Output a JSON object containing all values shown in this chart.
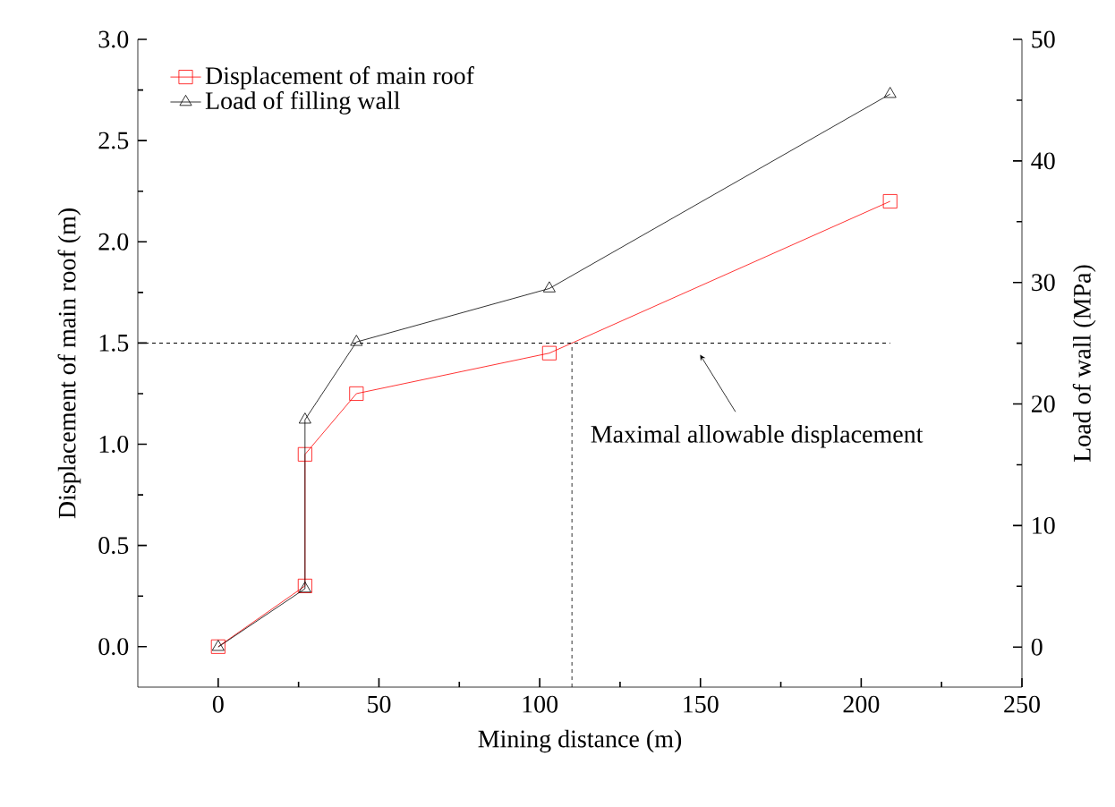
{
  "chart_data": {
    "type": "line",
    "xlabel": "Mining distance (m)",
    "ylabel": "Displacement of main roof (m)",
    "y2label": "Load of wall (MPa)",
    "x": [
      0,
      27,
      27,
      43,
      103,
      209
    ],
    "series": [
      {
        "name": "Displacement of main roof",
        "color": "#ff0000",
        "marker": "square",
        "values": [
          0,
          0.3,
          0.95,
          1.25,
          1.45,
          2.2
        ]
      },
      {
        "name": "Load of  filling wall",
        "color": "#000000",
        "marker": "triangle",
        "axis": "y2",
        "values": [
          0,
          4.8,
          18.7,
          25.1,
          29.5,
          45.5
        ]
      },
      {
        "color": "#000000",
        "marker": "none",
        "line_style": "dashed",
        "x": [
          -25,
          209
        ],
        "values": [
          1.5,
          1.5
        ]
      },
      {
        "color": "#000000",
        "marker": "none",
        "line_style": "dashed",
        "x": [
          110,
          110
        ],
        "values": [
          -0.2,
          1.5
        ]
      }
    ],
    "xlim": [
      -25,
      250
    ],
    "xticks": [
      0,
      50,
      100,
      150,
      200,
      250
    ],
    "ylim": [
      -0.2,
      3.0
    ],
    "yticks": [
      {
        "value": 0,
        "label": "0.0"
      },
      0.5,
      {
        "value": 1,
        "label": "1.0"
      },
      1.5,
      {
        "value": 2,
        "label": "2.0"
      },
      2.5,
      {
        "value": 3,
        "label": "3.0"
      }
    ],
    "y2lim": [
      -3.3,
      50
    ],
    "y2ticks": [
      0,
      10,
      20,
      30,
      40,
      50
    ],
    "annotations": [
      "Maximal allowable displacement"
    ],
    "legend": "top left",
    "grid": false
  }
}
